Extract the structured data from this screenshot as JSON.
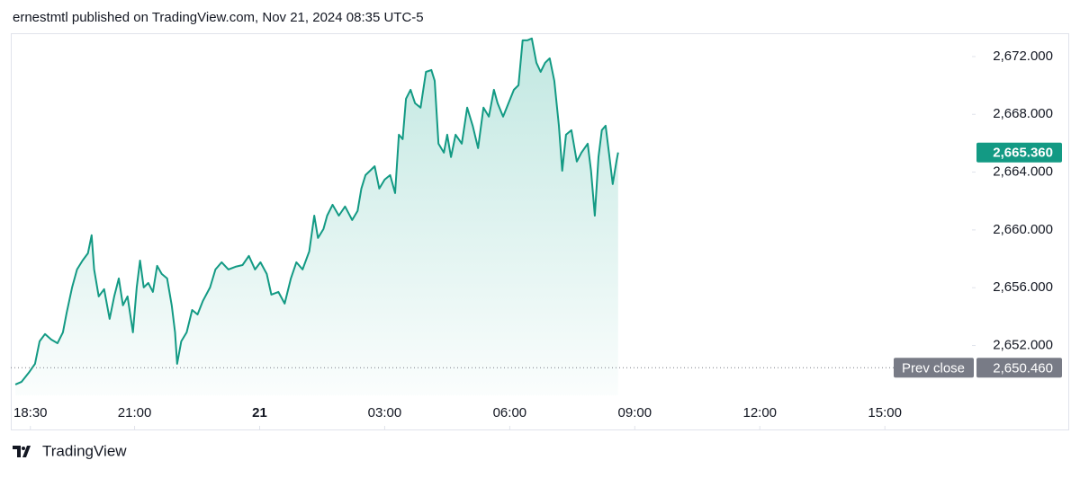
{
  "header": "ernestmtl published on TradingView.com, Nov 21, 2024 08:35 UTC-5",
  "footer": "TradingView",
  "chart_data": {
    "type": "area",
    "color": "#139a84",
    "x": [
      -5.86,
      -5.71,
      -5.54,
      -5.39,
      -5.28,
      -5.15,
      -5.0,
      -4.85,
      -4.72,
      -4.63,
      -4.5,
      -4.38,
      -4.25,
      -4.12,
      -4.03,
      -3.97,
      -3.86,
      -3.73,
      -3.6,
      -3.49,
      -3.38,
      -3.28,
      -3.17,
      -3.04,
      -2.95,
      -2.87,
      -2.78,
      -2.67,
      -2.56,
      -2.46,
      -2.35,
      -2.22,
      -2.11,
      -2.03,
      -1.98,
      -1.88,
      -1.75,
      -1.62,
      -1.49,
      -1.36,
      -1.19,
      -1.06,
      -0.91,
      -0.75,
      -0.58,
      -0.41,
      -0.26,
      -0.11,
      0.02,
      0.17,
      0.28,
      0.45,
      0.6,
      0.75,
      0.88,
      1.03,
      1.19,
      1.31,
      1.4,
      1.53,
      1.62,
      1.75,
      1.9,
      2.05,
      2.22,
      2.35,
      2.44,
      2.54,
      2.65,
      2.76,
      2.87,
      3.0,
      3.13,
      3.25,
      3.34,
      3.43,
      3.51,
      3.62,
      3.73,
      3.86,
      3.99,
      4.12,
      4.2,
      4.29,
      4.42,
      4.5,
      4.59,
      4.7,
      4.85,
      4.98,
      5.11,
      5.24,
      5.37,
      5.5,
      5.62,
      5.71,
      5.84,
      5.97,
      6.1,
      6.21,
      6.31,
      6.42,
      6.53,
      6.64,
      6.74,
      6.85,
      6.96,
      7.07,
      7.18,
      7.26,
      7.35,
      7.48,
      7.61,
      7.72,
      7.87,
      7.95,
      8.04,
      8.13,
      8.21,
      8.3,
      8.38,
      8.47,
      8.56,
      8.6
    ],
    "values": [
      2649.3,
      2649.49,
      2650.11,
      2650.73,
      2652.29,
      2652.79,
      2652.41,
      2652.16,
      2652.91,
      2654.28,
      2656.02,
      2657.26,
      2657.88,
      2658.38,
      2659.63,
      2657.26,
      2655.4,
      2655.9,
      2653.84,
      2655.4,
      2656.64,
      2654.78,
      2655.4,
      2652.91,
      2656.02,
      2657.88,
      2656.02,
      2656.33,
      2655.71,
      2657.51,
      2656.95,
      2656.64,
      2654.78,
      2652.91,
      2650.73,
      2652.29,
      2652.91,
      2654.46,
      2654.15,
      2655.09,
      2656.02,
      2657.26,
      2657.76,
      2657.26,
      2657.45,
      2657.57,
      2658.2,
      2657.26,
      2657.76,
      2656.95,
      2655.52,
      2655.71,
      2654.9,
      2656.64,
      2657.76,
      2657.26,
      2658.51,
      2660.99,
      2659.44,
      2660.06,
      2660.99,
      2661.74,
      2660.99,
      2661.62,
      2660.68,
      2661.31,
      2662.86,
      2663.79,
      2664.1,
      2664.41,
      2662.86,
      2663.48,
      2663.79,
      2662.55,
      2666.59,
      2666.28,
      2669.08,
      2669.7,
      2668.77,
      2668.46,
      2670.94,
      2671.07,
      2670.32,
      2665.97,
      2665.35,
      2666.59,
      2665.04,
      2666.59,
      2665.97,
      2668.46,
      2667.21,
      2665.66,
      2668.46,
      2667.84,
      2669.7,
      2668.77,
      2667.84,
      2668.77,
      2669.7,
      2670.01,
      2673.12,
      2673.12,
      2673.25,
      2671.57,
      2670.94,
      2671.57,
      2671.88,
      2670.32,
      2667.21,
      2664.1,
      2666.59,
      2666.9,
      2664.73,
      2665.35,
      2665.97,
      2664.1,
      2660.99,
      2665.04,
      2666.9,
      2667.21,
      2665.35,
      2663.17,
      2664.73,
      2665.36
    ],
    "last_label": "2,665.360",
    "reference_line": {
      "label": "Prev close",
      "value": 2650.46,
      "value_label": "2,650.460",
      "color": "#787b86"
    },
    "xlim": [
      -5.97,
      17.09
    ],
    "ylim": [
      2648.55,
      2673.55
    ],
    "xticks": [
      {
        "value": -5.5,
        "label": "18:30"
      },
      {
        "value": -3,
        "label": "21:00"
      },
      {
        "value": 0,
        "label": "21"
      },
      {
        "value": 3,
        "label": "03:00"
      },
      {
        "value": 6,
        "label": "06:00"
      },
      {
        "value": 9,
        "label": "09:00"
      },
      {
        "value": 12,
        "label": "12:00"
      },
      {
        "value": 15,
        "label": "15:00"
      }
    ],
    "yticks": [
      {
        "value": 2652,
        "label": "2,652.000"
      },
      {
        "value": 2656,
        "label": "2,656.000"
      },
      {
        "value": 2660,
        "label": "2,660.000"
      },
      {
        "value": 2664,
        "label": "2,664.000"
      },
      {
        "value": 2668,
        "label": "2,668.000"
      },
      {
        "value": 2672,
        "label": "2,672.000"
      }
    ]
  }
}
